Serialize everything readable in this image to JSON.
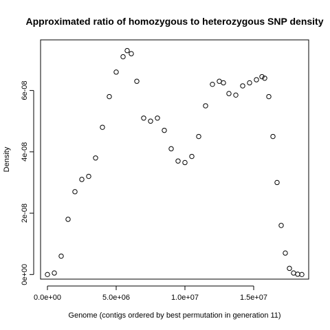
{
  "chart_data": {
    "type": "scatter",
    "title": "Approximated ratio of homozygous to heterozygous SNP density",
    "xlabel": "Genome (contigs ordered by best permutation in generation 11)",
    "ylabel": "Density",
    "xlim": [
      -500000,
      19000000
    ],
    "ylim": [
      -1.5e-09,
      7.65e-08
    ],
    "x_ticks": [
      {
        "value": 0,
        "label": "0.0e+00"
      },
      {
        "value": 5000000,
        "label": "5.0e+06"
      },
      {
        "value": 10000000,
        "label": "1.0e+07"
      },
      {
        "value": 15000000,
        "label": "1.5e+07"
      }
    ],
    "y_ticks": [
      {
        "value": 0,
        "label": "0e+00"
      },
      {
        "value": 2e-08,
        "label": "2e-08"
      },
      {
        "value": 4e-08,
        "label": "4e-08"
      },
      {
        "value": 6e-08,
        "label": "6e-08"
      }
    ],
    "grid": false,
    "marker": "open-circle",
    "marker_color": "#000000",
    "series": [
      {
        "x": [
          0,
          500000,
          1000000,
          1500000,
          2000000,
          2500000,
          3000000,
          3500000,
          4000000,
          4500000,
          5000000,
          5500000,
          5800000,
          6100000,
          6500000,
          7000000,
          7500000,
          8000000,
          8500000,
          9000000,
          9500000,
          10000000,
          10500000,
          11000000,
          11500000,
          12000000,
          12500000,
          12800000,
          13200000,
          13700000,
          14200000,
          14700000,
          15200000,
          15600000,
          15800000,
          16100000,
          16400000,
          16700000,
          17000000,
          17300000,
          17600000,
          17900000,
          18200000,
          18500000
        ],
        "y": [
          0,
          5e-10,
          6e-09,
          1.8e-08,
          2.7e-08,
          3.1e-08,
          3.2e-08,
          3.8e-08,
          4.8e-08,
          5.8e-08,
          6.6e-08,
          7.1e-08,
          7.3e-08,
          7.2e-08,
          6.3e-08,
          5.1e-08,
          5e-08,
          5.1e-08,
          4.7e-08,
          4.1e-08,
          3.7e-08,
          3.65e-08,
          3.85e-08,
          4.5e-08,
          5.5e-08,
          6.2e-08,
          6.3e-08,
          6.25e-08,
          5.9e-08,
          5.85e-08,
          6.15e-08,
          6.25e-08,
          6.35e-08,
          6.45e-08,
          6.4e-08,
          5.8e-08,
          4.5e-08,
          3e-08,
          1.6e-08,
          7e-09,
          2e-09,
          5e-10,
          1e-10,
          0
        ]
      }
    ]
  }
}
